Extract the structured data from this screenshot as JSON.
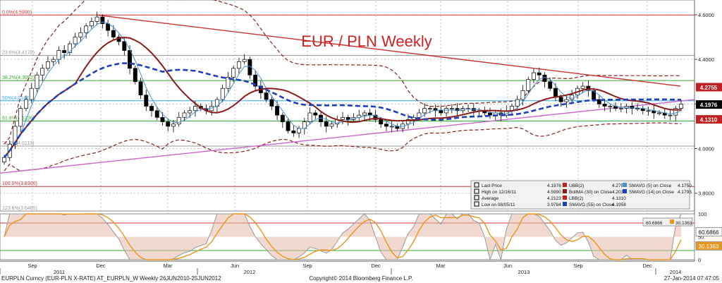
{
  "chart_data": [
    {
      "type": "line",
      "subtype": "candlestick",
      "title": "EUR / PLN Weekly",
      "y_axis": {
        "ticks": [
          "4.6000",
          "4.4000",
          "4.2000",
          "4.0000",
          "3.8000"
        ],
        "range": [
          3.72,
          4.66
        ],
        "position": "right"
      },
      "x_axis": {
        "month_ticks": [
          "Sep",
          "Dec",
          "Mar",
          "Jun",
          "Sep",
          "Dec",
          "Mar",
          "Jun",
          "Sep",
          "Dec"
        ],
        "year_ticks": [
          "2011",
          "2012",
          "2013",
          "2014"
        ]
      },
      "fib_levels": [
        {
          "label": "0.0%(4.5990)",
          "value": 4.599,
          "color": "#cc3333"
        },
        {
          "label": "23.6%(4.4175)",
          "value": 4.4175,
          "color": "#999999"
        },
        {
          "label": "38.2%(4.3052)",
          "value": 4.3052,
          "color": "#33aa33"
        },
        {
          "label": "50%(4.2144)",
          "value": 4.2144,
          "color": "#33aaff"
        },
        {
          "label": "61.8%(4.1236)",
          "value": 4.1236,
          "color": "#33aa33"
        },
        {
          "label": "76.4%(4.0113)",
          "value": 4.0113,
          "color": "#999999"
        },
        {
          "label": "100.0%(3.8300)",
          "value": 3.83,
          "color": "#cc3333"
        },
        {
          "label": "123.6%(3.6485)",
          "value": 3.6485,
          "color": "#999999"
        }
      ],
      "price_tags": [
        {
          "label": "4.2755",
          "value": 4.2755,
          "color": "#c02020"
        },
        {
          "label": "4.1976",
          "value": 4.1976,
          "color": "#000000"
        },
        {
          "label": "4.1310",
          "value": 4.131,
          "color": "#c02020"
        }
      ],
      "close_series": [
        3.96,
        4.02,
        4.1,
        4.18,
        4.22,
        4.27,
        4.33,
        4.36,
        4.39,
        4.4,
        4.44,
        4.43,
        4.47,
        4.5,
        4.52,
        4.55,
        4.57,
        4.59,
        4.56,
        4.53,
        4.5,
        4.48,
        4.44,
        4.36,
        4.3,
        4.24,
        4.19,
        4.17,
        4.14,
        4.12,
        4.1,
        4.11,
        4.14,
        4.16,
        4.17,
        4.19,
        4.18,
        4.17,
        4.19,
        4.22,
        4.27,
        4.32,
        4.36,
        4.39,
        4.4,
        4.33,
        4.28,
        4.25,
        4.22,
        4.19,
        4.15,
        4.12,
        4.08,
        4.07,
        4.09,
        4.12,
        4.16,
        4.15,
        4.12,
        4.1,
        4.11,
        4.13,
        4.14,
        4.13,
        4.14,
        4.15,
        4.16,
        4.15,
        4.13,
        4.11,
        4.1,
        4.1,
        4.09,
        4.11,
        4.13,
        4.14,
        4.16,
        4.18,
        4.18,
        4.17,
        4.16,
        4.18,
        4.18,
        4.17,
        4.18,
        4.18,
        4.17,
        4.17,
        4.16,
        4.15,
        4.16,
        4.15,
        4.17,
        4.19,
        4.22,
        4.26,
        4.31,
        4.34,
        4.33,
        4.3,
        4.27,
        4.23,
        4.21,
        4.22,
        4.24,
        4.27,
        4.28,
        4.26,
        4.22,
        4.2,
        4.19,
        4.19,
        4.18,
        4.18,
        4.19,
        4.18,
        4.18,
        4.17,
        4.17,
        4.16,
        4.16,
        4.15,
        4.15,
        4.18,
        4.2
      ],
      "indicators": [
        {
          "name": "UBB(2)",
          "value": "4.2755"
        },
        {
          "name": "BollMA (30) on Close",
          "value": "4.2032"
        },
        {
          "name": "LBB(2)",
          "value": "4.1310"
        },
        {
          "name": "SMAVG (55) on Close",
          "value": "4.1958"
        },
        {
          "name": "SMAVG (5) on Close",
          "value": "4.1750"
        },
        {
          "name": "SMAVG (14) on Close",
          "value": "4.1793"
        }
      ],
      "legend_stats": [
        {
          "label": "Last Price",
          "value": "4.1976"
        },
        {
          "label": "High on 12/16/11",
          "value": "4.5990"
        },
        {
          "label": "Average",
          "value": "4.2123"
        },
        {
          "label": "Low on 08/05/11",
          "value": "3.9784"
        }
      ],
      "legend_placement": "bottom-right",
      "grid": true
    },
    {
      "type": "line",
      "title": "",
      "y_axis": {
        "ticks": [
          "100",
          "50",
          "0"
        ],
        "range": [
          0,
          100
        ]
      },
      "tags": [
        {
          "label": "60.6866",
          "value": 60.6866
        },
        {
          "label": "30.1363",
          "value": 30.1363
        }
      ],
      "legend": [
        "60.6866",
        "30.1363"
      ],
      "grid": true
    }
  ],
  "footer": {
    "left": "EURPLN Curncy (EUR-PLN X-RATE) AT_EURPLN_W  Weekly 26JUN2010-25JUN2012",
    "center": "Copyright© 2014 Bloomberg Finance L.P.",
    "right": "27-Jan-2014 07:47:05"
  },
  "colors": {
    "ma_blue": "#1f3fbf",
    "ma_red": "#8b1a1a",
    "band": "#8b2020",
    "sma_thin": "#4a90d0",
    "trend": "#cc3333",
    "support": "#cc66cc"
  }
}
